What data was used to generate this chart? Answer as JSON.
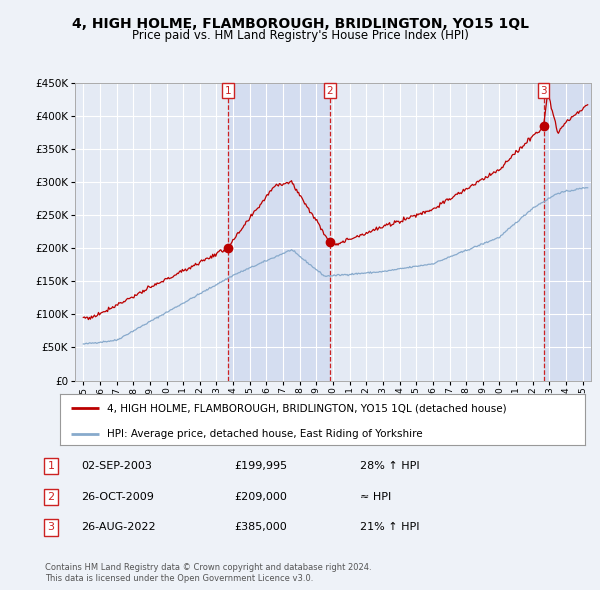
{
  "title": "4, HIGH HOLME, FLAMBOROUGH, BRIDLINGTON, YO15 1QL",
  "subtitle": "Price paid vs. HM Land Registry's House Price Index (HPI)",
  "property_label": "4, HIGH HOLME, FLAMBOROUGH, BRIDLINGTON, YO15 1QL (detached house)",
  "hpi_label": "HPI: Average price, detached house, East Riding of Yorkshire",
  "footer_line1": "Contains HM Land Registry data © Crown copyright and database right 2024.",
  "footer_line2": "This data is licensed under the Open Government Licence v3.0.",
  "transactions": [
    {
      "num": 1,
      "date": "02-SEP-2003",
      "price": "£199,995",
      "hpi_rel": "28% ↑ HPI",
      "x_year": 2003.67,
      "y_val": 199995
    },
    {
      "num": 2,
      "date": "26-OCT-2009",
      "price": "£209,000",
      "hpi_rel": "≈ HPI",
      "x_year": 2009.82,
      "y_val": 209000
    },
    {
      "num": 3,
      "date": "26-AUG-2022",
      "price": "£385,000",
      "hpi_rel": "21% ↑ HPI",
      "x_year": 2022.65,
      "y_val": 385000
    }
  ],
  "background_color": "#eef2f8",
  "plot_bg_color": "#e4eaf4",
  "shade_color": "#d0daf0",
  "grid_color": "#ffffff",
  "red_color": "#bb0000",
  "blue_color": "#88aacc",
  "vline_color": "#cc2222",
  "box_color": "#cc2222",
  "ylim": [
    0,
    450000
  ],
  "xlim_start": 1994.5,
  "xlim_end": 2025.5
}
